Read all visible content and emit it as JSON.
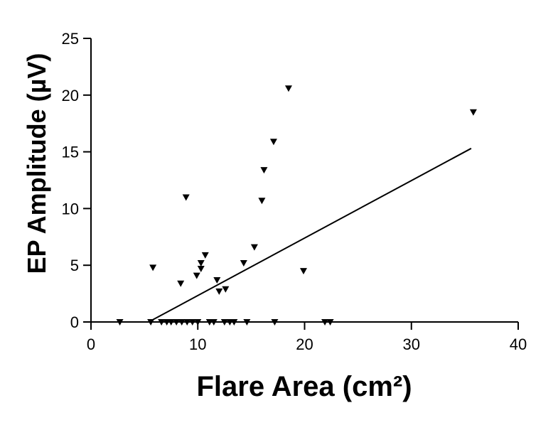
{
  "chart_data": {
    "type": "scatter",
    "xlabel": "Flare Area (cm²)",
    "ylabel": "EP Amplitude (µV)",
    "xlim": [
      0,
      40
    ],
    "ylim": [
      0,
      25
    ],
    "x_ticks": [
      "0",
      "10",
      "20",
      "30",
      "40"
    ],
    "y_ticks": [
      "0",
      "5",
      "10",
      "15",
      "20",
      "25"
    ],
    "grid": false,
    "marker": "triangle-down",
    "color": "#000000",
    "points": [
      {
        "x": 2.7,
        "y": 0
      },
      {
        "x": 5.6,
        "y": 0
      },
      {
        "x": 6.6,
        "y": 0
      },
      {
        "x": 7.1,
        "y": 0
      },
      {
        "x": 7.5,
        "y": 0
      },
      {
        "x": 8.0,
        "y": 0
      },
      {
        "x": 8.5,
        "y": 0
      },
      {
        "x": 9.0,
        "y": 0
      },
      {
        "x": 9.5,
        "y": 0
      },
      {
        "x": 10.0,
        "y": 0
      },
      {
        "x": 11.1,
        "y": 0
      },
      {
        "x": 11.5,
        "y": 0
      },
      {
        "x": 12.5,
        "y": 0
      },
      {
        "x": 13.0,
        "y": 0
      },
      {
        "x": 13.4,
        "y": 0
      },
      {
        "x": 14.6,
        "y": 0
      },
      {
        "x": 17.2,
        "y": 0
      },
      {
        "x": 21.9,
        "y": 0
      },
      {
        "x": 22.4,
        "y": 0
      },
      {
        "x": 5.8,
        "y": 4.8
      },
      {
        "x": 8.4,
        "y": 3.4
      },
      {
        "x": 8.9,
        "y": 11.0
      },
      {
        "x": 9.9,
        "y": 4.1
      },
      {
        "x": 10.3,
        "y": 5.2
      },
      {
        "x": 10.3,
        "y": 4.7
      },
      {
        "x": 10.7,
        "y": 5.9
      },
      {
        "x": 11.8,
        "y": 3.7
      },
      {
        "x": 12.0,
        "y": 2.7
      },
      {
        "x": 12.6,
        "y": 2.9
      },
      {
        "x": 14.3,
        "y": 5.2
      },
      {
        "x": 15.3,
        "y": 6.6
      },
      {
        "x": 16.0,
        "y": 10.7
      },
      {
        "x": 16.2,
        "y": 13.4
      },
      {
        "x": 17.1,
        "y": 15.9
      },
      {
        "x": 18.5,
        "y": 20.6
      },
      {
        "x": 19.9,
        "y": 4.5
      },
      {
        "x": 35.8,
        "y": 18.5
      }
    ],
    "regression_line": {
      "x": [
        5.6,
        35.6
      ],
      "y": [
        0.1,
        15.3
      ]
    }
  }
}
